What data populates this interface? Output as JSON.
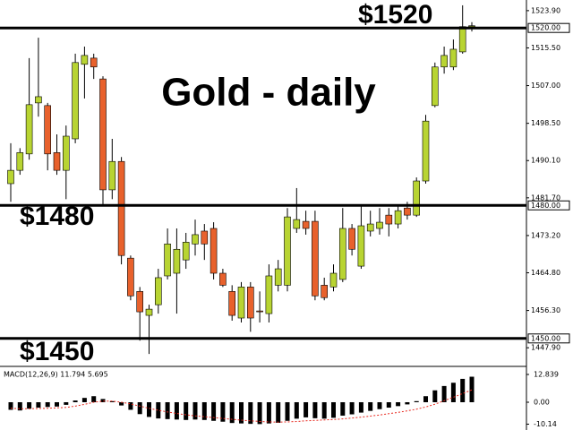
{
  "chart_data": [
    {
      "type": "candlestick",
      "title": "Gold - daily",
      "open": [
        1484.9,
        1487.9,
        1491.6,
        1503.1,
        1502.5,
        1491.9,
        1487.9,
        1495.0,
        1511.8,
        1513.2,
        1508.5,
        1483.5,
        1489.9,
        1468.1,
        1460.6,
        1455.2,
        1457.6,
        1464.1,
        1464.7,
        1467.7,
        1471.3,
        1474.2,
        1474.8,
        1464.7,
        1460.6,
        1454.6,
        1461.6,
        1456.2,
        1455.6,
        1462.0,
        1462.0,
        1474.8,
        1476.4,
        1476.4,
        1462.0,
        1461.6,
        1463.3,
        1474.8,
        1466.3,
        1474.2,
        1474.8,
        1477.8,
        1475.8,
        1479.4,
        1477.8,
        1485.5,
        1502.5,
        1511.2,
        1511.2,
        1514.6,
        1520.3
      ],
      "high": [
        1494.0,
        1492.9,
        1513.2,
        1517.8,
        1503.1,
        1496.0,
        1498.0,
        1514.2,
        1515.8,
        1514.2,
        1509.1,
        1495.0,
        1490.9,
        1468.7,
        1461.6,
        1457.6,
        1465.7,
        1474.8,
        1474.8,
        1473.8,
        1476.8,
        1475.8,
        1476.2,
        1465.7,
        1462.0,
        1462.7,
        1462.7,
        1460.6,
        1466.7,
        1467.7,
        1479.4,
        1483.9,
        1478.8,
        1478.8,
        1463.7,
        1466.7,
        1479.4,
        1475.8,
        1479.8,
        1478.8,
        1479.4,
        1479.4,
        1480.0,
        1480.8,
        1486.3,
        1500.4,
        1512.2,
        1515.8,
        1517.4,
        1525.1,
        1521.3
      ],
      "low": [
        1480.8,
        1486.9,
        1490.3,
        1500.0,
        1487.9,
        1486.9,
        1481.4,
        1494.0,
        1504.1,
        1508.5,
        1479.8,
        1481.4,
        1466.7,
        1458.6,
        1449.5,
        1446.5,
        1455.6,
        1463.3,
        1455.6,
        1465.7,
        1468.7,
        1467.7,
        1463.3,
        1461.6,
        1454.0,
        1453.6,
        1451.5,
        1453.6,
        1453.6,
        1460.6,
        1460.6,
        1473.8,
        1473.4,
        1458.6,
        1458.6,
        1460.6,
        1462.7,
        1468.7,
        1465.7,
        1473.0,
        1473.4,
        1473.0,
        1474.8,
        1476.8,
        1477.4,
        1484.9,
        1502.1,
        1509.7,
        1510.5,
        1514.2,
        1519.2
      ],
      "close": [
        1487.9,
        1491.9,
        1502.7,
        1504.5,
        1491.6,
        1487.9,
        1495.6,
        1512.2,
        1513.8,
        1511.2,
        1483.5,
        1489.9,
        1468.7,
        1459.6,
        1456.0,
        1456.6,
        1463.7,
        1471.3,
        1470.1,
        1471.7,
        1473.4,
        1471.3,
        1464.7,
        1462.0,
        1455.2,
        1461.6,
        1454.6,
        1456.0,
        1464.1,
        1465.7,
        1477.4,
        1476.8,
        1474.8,
        1459.6,
        1459.2,
        1464.7,
        1474.8,
        1470.1,
        1475.4,
        1475.8,
        1476.2,
        1475.8,
        1478.8,
        1477.8,
        1485.5,
        1499.0,
        1511.2,
        1513.8,
        1515.2,
        1520.3,
        1520.5
      ],
      "up_color": "#b8d432",
      "down_color": "#e8612c",
      "ylim": [
        1443.9,
        1526.3
      ],
      "yticks": [
        {
          "value": 1523.9,
          "label": "1523.90"
        },
        {
          "value": 1515.5,
          "label": "1515.50"
        },
        {
          "value": 1507,
          "label": "1507.00"
        },
        {
          "value": 1498.5,
          "label": "1498.50"
        },
        {
          "value": 1490.1,
          "label": "1490.10"
        },
        {
          "value": 1481.7,
          "label": "1481.70"
        },
        {
          "value": 1473.2,
          "label": "1473.20"
        },
        {
          "value": 1464.8,
          "label": "1464.80"
        },
        {
          "value": 1456.3,
          "label": "1456.30"
        },
        {
          "value": 1447.9,
          "label": "1447.90"
        }
      ],
      "levels": [
        {
          "value": 1520,
          "label": "1520.00"
        },
        {
          "value": 1480,
          "label": "1480.00"
        },
        {
          "value": 1450,
          "label": "1450.00"
        }
      ],
      "annotations": [
        "$1520",
        "$1480",
        "$1450"
      ]
    },
    {
      "type": "bar",
      "title": "MACD(12,26,9) 11.794 5.695",
      "values": [
        -3.5,
        -3.8,
        -3.0,
        -2.5,
        -2.2,
        -2.0,
        -1.2,
        0.8,
        2.0,
        2.8,
        1.5,
        0.5,
        -1.5,
        -3.5,
        -5.5,
        -6.8,
        -7.5,
        -7.8,
        -8.0,
        -8.2,
        -8.0,
        -8.2,
        -8.6,
        -9.0,
        -9.6,
        -9.8,
        -10.0,
        -10.1,
        -9.8,
        -9.5,
        -8.6,
        -7.6,
        -7.0,
        -7.4,
        -7.6,
        -7.2,
        -6.2,
        -5.6,
        -4.8,
        -4.0,
        -3.2,
        -2.5,
        -1.8,
        -1.0,
        0.5,
        2.8,
        5.5,
        7.5,
        9.0,
        10.8,
        11.794
      ],
      "color": "#000000",
      "signal": {
        "color": "#e8281e",
        "values": [
          -2.8,
          -3.0,
          -3.0,
          -2.9,
          -2.8,
          -2.6,
          -2.4,
          -1.8,
          -1.0,
          0.0,
          0.5,
          0.5,
          0.0,
          -0.8,
          -1.8,
          -2.8,
          -3.7,
          -4.5,
          -5.2,
          -5.8,
          -6.3,
          -6.7,
          -7.1,
          -7.5,
          -7.9,
          -8.3,
          -8.6,
          -8.9,
          -9.1,
          -9.2,
          -9.1,
          -8.9,
          -8.6,
          -8.4,
          -8.2,
          -8.0,
          -7.7,
          -7.3,
          -6.9,
          -6.4,
          -5.9,
          -5.3,
          -4.7,
          -4.0,
          -3.2,
          -2.2,
          -0.9,
          0.7,
          2.3,
          4.0,
          5.695
        ]
      },
      "ylim": [
        -12.84,
        16.15
      ],
      "yticks": [
        12.839,
        {
          "value": 0,
          "label": "0.00"
        },
        -10.14
      ]
    }
  ]
}
